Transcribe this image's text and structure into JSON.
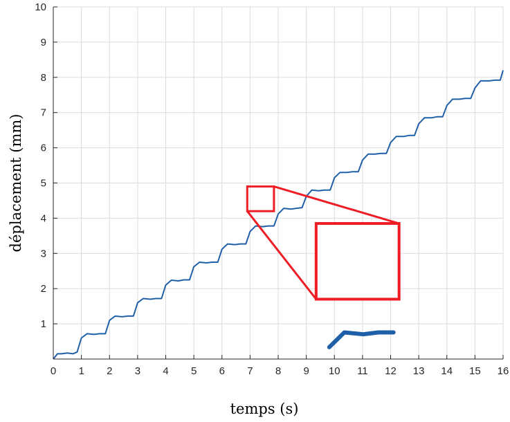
{
  "chart_data": {
    "type": "line",
    "title": "",
    "xlabel": "temps (s)",
    "ylabel": "déplacement (mm)",
    "xlim": [
      0,
      16
    ],
    "ylim": [
      0,
      10
    ],
    "xticks": [
      0,
      1,
      2,
      3,
      4,
      5,
      6,
      7,
      8,
      9,
      10,
      11,
      12,
      13,
      14,
      15,
      16
    ],
    "yticks": [
      1,
      2,
      3,
      4,
      5,
      6,
      7,
      8,
      9,
      10
    ],
    "grid": true,
    "series_color": "#1f5fa8",
    "highlight_color": "#ee1c25",
    "series": [
      {
        "x": [
          0,
          0.15,
          0.3,
          0.5,
          0.7,
          0.85,
          1.0,
          1.2,
          1.45,
          1.65,
          1.85,
          2.0,
          2.2,
          2.45,
          2.65,
          2.85,
          3.0,
          3.2,
          3.45,
          3.65,
          3.85,
          4.0,
          4.2,
          4.45,
          4.65,
          4.85,
          5.0,
          5.2,
          5.45,
          5.65,
          5.85,
          6.0,
          6.2,
          6.45,
          6.65,
          6.85,
          7.0,
          7.2,
          7.45,
          7.65,
          7.85,
          8.0,
          8.2,
          8.45,
          8.65,
          8.85,
          9.0,
          9.2,
          9.45,
          9.65,
          9.85,
          10.0,
          10.2,
          10.45,
          10.65,
          10.85,
          11.0,
          11.2,
          11.45,
          11.65,
          11.85,
          12.0,
          12.2,
          12.45,
          12.65,
          12.85,
          13.0,
          13.2,
          13.45,
          13.65,
          13.85,
          14.0,
          14.2,
          14.45,
          14.65,
          14.85,
          15.0,
          15.2,
          15.5,
          15.7,
          15.9,
          16.0
        ],
        "y": [
          0.0,
          0.15,
          0.15,
          0.17,
          0.15,
          0.2,
          0.6,
          0.72,
          0.7,
          0.72,
          0.72,
          1.1,
          1.22,
          1.2,
          1.22,
          1.22,
          1.6,
          1.72,
          1.7,
          1.72,
          1.72,
          2.1,
          2.24,
          2.22,
          2.25,
          2.25,
          2.62,
          2.75,
          2.73,
          2.75,
          2.75,
          3.12,
          3.27,
          3.25,
          3.27,
          3.27,
          3.62,
          3.78,
          3.76,
          3.78,
          3.78,
          4.12,
          4.28,
          4.26,
          4.28,
          4.3,
          4.62,
          4.8,
          4.78,
          4.8,
          4.8,
          5.15,
          5.3,
          5.3,
          5.32,
          5.32,
          5.65,
          5.82,
          5.82,
          5.84,
          5.84,
          6.15,
          6.32,
          6.32,
          6.35,
          6.35,
          6.68,
          6.85,
          6.85,
          6.88,
          6.88,
          7.2,
          7.38,
          7.38,
          7.4,
          7.4,
          7.7,
          7.9,
          7.9,
          7.92,
          7.92,
          8.2
        ]
      }
    ],
    "annotation": {
      "zoom_region": {
        "x": [
          6.9,
          7.85
        ],
        "y": [
          4.2,
          4.9
        ]
      },
      "inset_region": {
        "x": [
          9.35,
          12.3
        ],
        "y": [
          1.7,
          3.85
        ]
      }
    }
  }
}
